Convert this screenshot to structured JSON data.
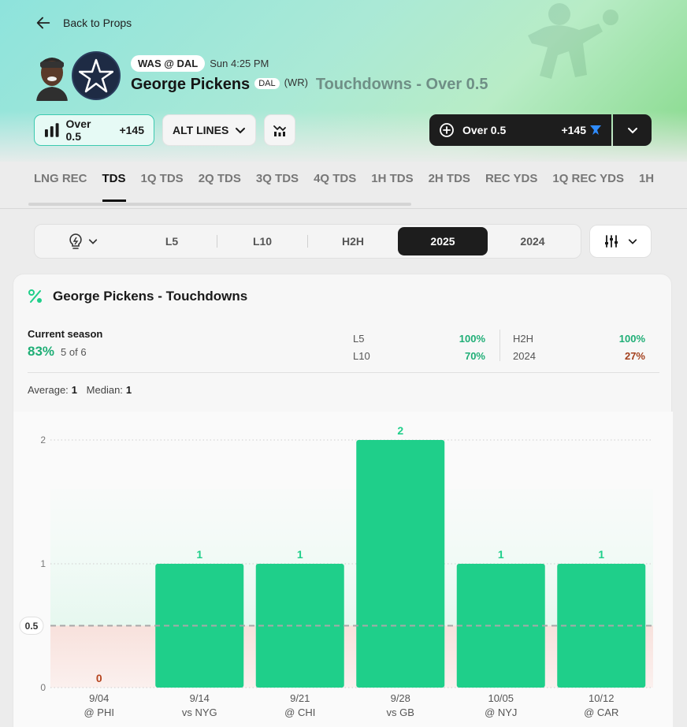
{
  "nav": {
    "back_label": "Back to Props"
  },
  "header": {
    "matchup": "WAS @ DAL",
    "game_time": "Sun 4:25 PM",
    "player_name": "George Pickens",
    "team": "DAL",
    "position": "(WR)",
    "market": "Touchdowns - Over 0.5",
    "colors": {
      "accent": "#1fcf8a",
      "team_navy": "#1e2b44"
    }
  },
  "actions": {
    "selected_line": "Over 0.5",
    "selected_odds": "+145",
    "alt_lines_label": "ALT LINES",
    "bet_label": "Over 0.5",
    "bet_odds": "+145",
    "icons": [
      "bar-chart-icon",
      "chevron-down-icon",
      "compare-icon",
      "plus-circle-icon",
      "sportsbook-logo-icon"
    ]
  },
  "tabs": [
    "LNG REC",
    "TDS",
    "1Q TDS",
    "2Q TDS",
    "3Q TDS",
    "4Q TDS",
    "1H TDS",
    "2H TDS",
    "REC YDS",
    "1Q REC YDS",
    "1H"
  ],
  "active_tab": "TDS",
  "filters": {
    "segments": [
      "L5",
      "L10",
      "H2H",
      "2025",
      "2024"
    ],
    "active": "2025"
  },
  "card": {
    "title": "George Pickens - Touchdowns",
    "season_label": "Current season",
    "season_pct": "83%",
    "season_of": "5 of 6",
    "stats_left": [
      {
        "k": "L5",
        "v": "100%",
        "tone": "good"
      },
      {
        "k": "L10",
        "v": "70%",
        "tone": "good"
      }
    ],
    "stats_right": [
      {
        "k": "H2H",
        "v": "100%",
        "tone": "good"
      },
      {
        "k": "2024",
        "v": "27%",
        "tone": "bad"
      }
    ],
    "average_label": "Average:",
    "average_value": "1",
    "median_label": "Median:",
    "median_value": "1"
  },
  "chart_data": {
    "type": "bar",
    "categories": [
      "9/04",
      "9/14",
      "9/21",
      "9/28",
      "10/05",
      "10/12"
    ],
    "opponents": [
      "@ PHI",
      "vs NYG",
      "@ CHI",
      "vs GB",
      "@ NYJ",
      "@ CAR"
    ],
    "values": [
      0,
      1,
      1,
      2,
      1,
      1
    ],
    "line": 0.5,
    "line_label": "0.5",
    "yticks": [
      "0",
      "1",
      "2"
    ],
    "ylim": [
      0,
      2
    ],
    "colors": {
      "hit": "#1fcf8a",
      "miss": "#b5441e",
      "line": "#a8a8a8"
    }
  }
}
